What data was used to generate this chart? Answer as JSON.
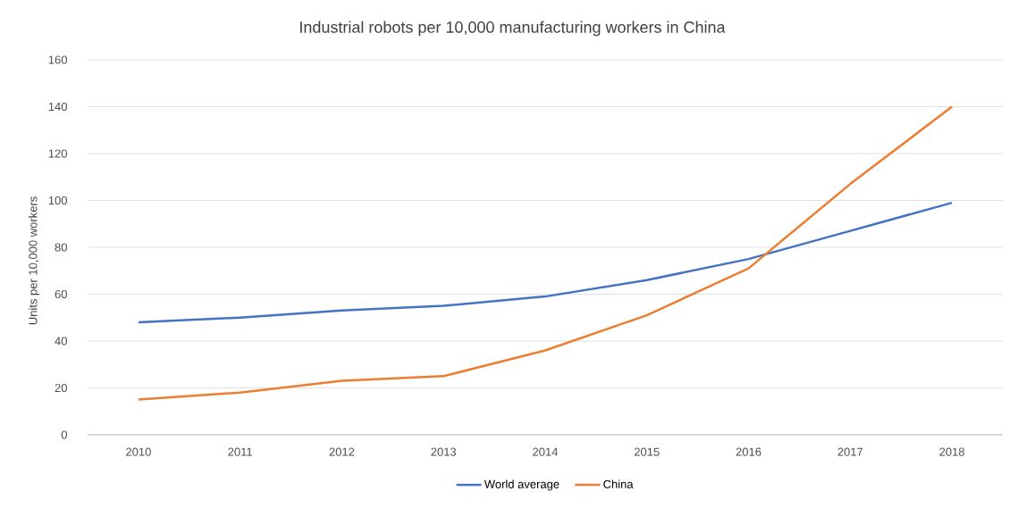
{
  "chart_data": {
    "type": "line",
    "title": "Industrial robots per 10,000 manufacturing workers in China",
    "ylabel": "Units per 10,000 workers",
    "categories": [
      "2010",
      "2011",
      "2012",
      "2013",
      "2014",
      "2015",
      "2016",
      "2017",
      "2018"
    ],
    "series": [
      {
        "name": "World average",
        "color": "#4472c4",
        "values": [
          48,
          50,
          53,
          55,
          59,
          66,
          75,
          87,
          99
        ]
      },
      {
        "name": "China",
        "color": "#ed7d31",
        "values": [
          15,
          18,
          23,
          25,
          36,
          51,
          71,
          107,
          140
        ]
      }
    ],
    "ylim": [
      0,
      160
    ],
    "yticks": [
      0,
      20,
      40,
      60,
      80,
      100,
      120,
      140,
      160
    ],
    "grid": "y",
    "legend": "bottom"
  }
}
